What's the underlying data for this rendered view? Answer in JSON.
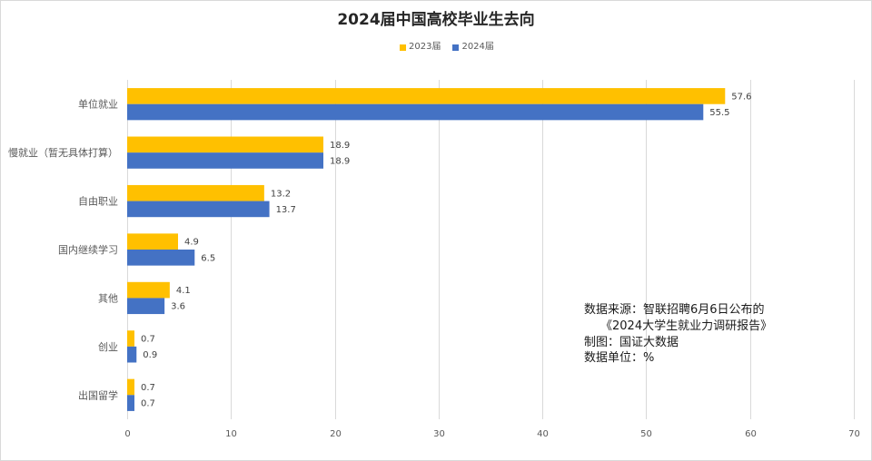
{
  "chart_data": {
    "type": "bar",
    "orientation": "horizontal",
    "title": "2024届中国高校毕业生去向",
    "categories": [
      "单位就业",
      "慢就业（暂无具体打算）",
      "自由职业",
      "国内继续学习",
      "其他",
      "创业",
      "出国留学"
    ],
    "series": [
      {
        "name": "2023届",
        "color": "#FFC000",
        "values": [
          57.6,
          18.9,
          13.2,
          4.9,
          4.1,
          0.7,
          0.7
        ]
      },
      {
        "name": "2024届",
        "color": "#4472C4",
        "values": [
          55.5,
          18.9,
          13.7,
          6.5,
          3.6,
          0.9,
          0.7
        ]
      }
    ],
    "xlim": [
      0,
      70
    ],
    "x_ticks": [
      0,
      10,
      20,
      30,
      40,
      50,
      60,
      70
    ],
    "grid": "vertical",
    "legend_position": "top",
    "data_labels": true
  },
  "annotation": {
    "lines": [
      "数据来源：智联招聘6月6日公布的",
      "《2024大学生就业力调研报告》",
      "制图：国证大数据",
      "数据单位：%"
    ]
  }
}
